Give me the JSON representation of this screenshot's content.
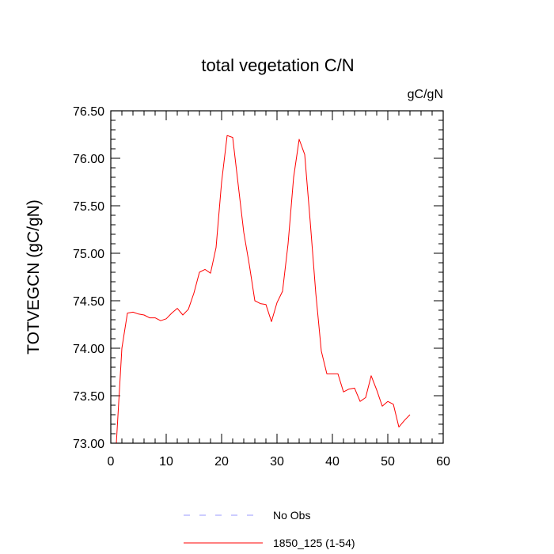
{
  "chart_data": {
    "type": "line",
    "title": "total vegetation C/N",
    "units_label": "gC/gN",
    "ylabel": "TOTVEGCN  (gC/gN)",
    "xlabel": "",
    "xlim": [
      0,
      60
    ],
    "ylim": [
      73.0,
      76.5
    ],
    "x_ticks": [
      0,
      10,
      20,
      30,
      40,
      50,
      60
    ],
    "y_ticks": [
      73.0,
      73.5,
      74.0,
      74.5,
      75.0,
      75.5,
      76.0,
      76.5
    ],
    "x_tick_labels": [
      "0",
      "10",
      "20",
      "30",
      "40",
      "50",
      "60"
    ],
    "y_tick_labels": [
      "73.00",
      "73.50",
      "74.00",
      "74.50",
      "75.00",
      "75.50",
      "76.00",
      "76.50"
    ],
    "grid": false,
    "legend_position": "bottom",
    "series": [
      {
        "name": "No Obs",
        "color": "#9999ff",
        "dashed": true,
        "x": [],
        "y": []
      },
      {
        "name": "1850_125 (1-54)",
        "color": "#ff0000",
        "dashed": false,
        "x": [
          1,
          2,
          3,
          4,
          5,
          6,
          7,
          8,
          9,
          10,
          11,
          12,
          13,
          14,
          15,
          16,
          17,
          18,
          19,
          20,
          21,
          22,
          23,
          24,
          25,
          26,
          27,
          28,
          29,
          30,
          31,
          32,
          33,
          34,
          35,
          36,
          37,
          38,
          39,
          40,
          41,
          42,
          43,
          44,
          45,
          46,
          47,
          48,
          49,
          50,
          51,
          52,
          53,
          54
        ],
        "y": [
          73.0,
          74.0,
          74.37,
          74.38,
          74.36,
          74.35,
          74.32,
          74.32,
          74.29,
          74.31,
          74.37,
          74.42,
          74.35,
          74.41,
          74.58,
          74.8,
          74.83,
          74.79,
          75.06,
          75.75,
          76.24,
          76.22,
          75.72,
          75.22,
          74.88,
          74.5,
          74.47,
          74.46,
          74.28,
          74.48,
          74.6,
          75.1,
          75.8,
          76.2,
          76.04,
          75.33,
          74.58,
          73.97,
          73.73,
          73.73,
          73.73,
          73.54,
          73.57,
          73.58,
          73.44,
          73.48,
          73.71,
          73.56,
          73.39,
          73.44,
          73.41,
          73.17,
          73.24,
          73.3
        ]
      }
    ]
  }
}
